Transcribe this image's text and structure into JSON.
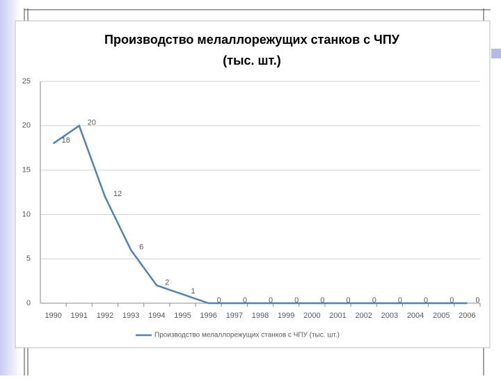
{
  "chart_data": {
    "type": "line",
    "title": "Производство мелаллорежущих станков с ЧПУ",
    "subtitle": "(тыс. шт.)",
    "categories": [
      "1990",
      "1991",
      "1992",
      "1993",
      "1994",
      "1995",
      "1996",
      "1997",
      "1998",
      "1999",
      "2000",
      "2001",
      "2002",
      "2003",
      "2004",
      "2005",
      "2006"
    ],
    "series": [
      {
        "name": "Производство мелаллорежущих станков с ЧПУ (тыс. шт.)",
        "color": "#4f81bd",
        "values": [
          18,
          20,
          12,
          6,
          2,
          1,
          0,
          0,
          0,
          0,
          0,
          0,
          0,
          0,
          0,
          0,
          0
        ]
      }
    ],
    "ylim": [
      0,
      25
    ],
    "yticks": [
      0,
      5,
      10,
      15,
      20,
      25
    ],
    "grid": true,
    "legend": "bottom"
  }
}
